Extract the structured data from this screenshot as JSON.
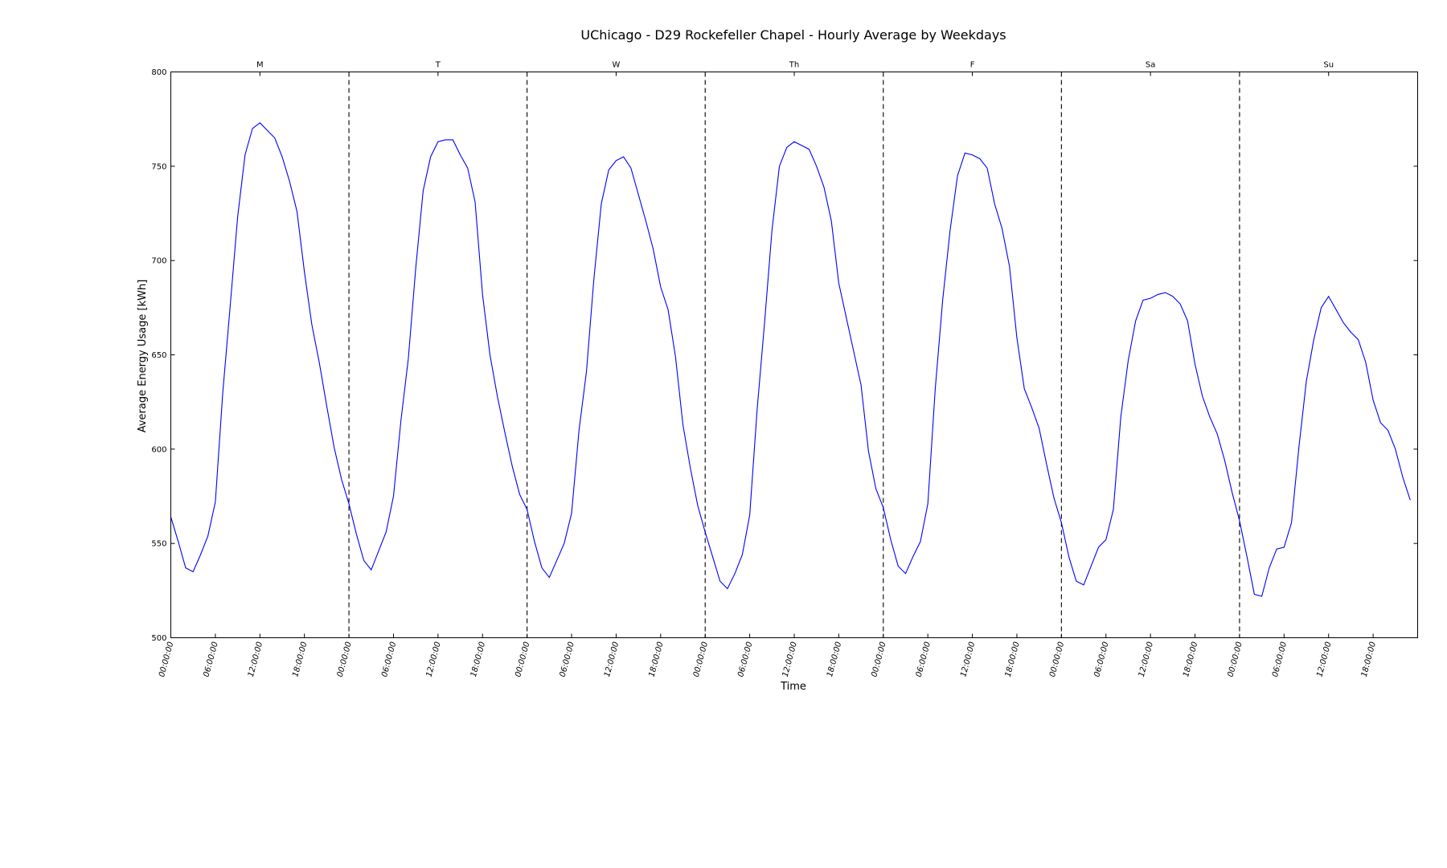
{
  "chart_data": {
    "type": "line",
    "title": "UChicago - D29 Rockefeller Chapel - Hourly Average by Weekdays",
    "xlabel": "Time",
    "ylabel": "Average Energy Usage [kWh]",
    "ylim": [
      500,
      800
    ],
    "yticks": [
      500,
      550,
      600,
      650,
      700,
      750,
      800
    ],
    "grid": false,
    "days": [
      "M",
      "T",
      "W",
      "Th",
      "F",
      "Sa",
      "Su"
    ],
    "xtick_labels": [
      "00:00:00",
      "06:00:00",
      "12:00:00",
      "18:00:00"
    ],
    "line_color": "#0000ff",
    "series": [
      {
        "hours_per_day": 24,
        "values": [
          [
            564,
            551,
            537,
            535,
            544,
            554,
            572,
            630,
            676,
            723,
            756,
            770,
            773,
            769,
            765,
            755,
            742,
            726,
            694,
            666,
            646,
            623,
            601,
            584
          ],
          [
            571,
            555,
            541,
            536,
            546,
            556,
            575,
            615,
            648,
            696,
            737,
            755,
            763,
            764,
            764,
            756,
            749,
            731,
            682,
            650,
            628,
            609,
            591,
            576
          ],
          [
            568,
            551,
            537,
            532,
            541,
            550,
            566,
            610,
            641,
            690,
            730,
            748,
            753,
            755,
            749,
            735,
            721,
            706,
            686,
            674,
            649,
            613,
            590,
            570
          ],
          [
            556,
            543,
            530,
            526,
            534,
            544,
            565,
            621,
            667,
            716,
            750,
            760,
            763,
            761,
            759,
            750,
            739,
            721,
            688,
            670,
            652,
            634,
            599,
            579
          ],
          [
            569,
            552,
            538,
            534,
            543,
            551,
            571,
            632,
            679,
            716,
            745,
            757,
            756,
            754,
            749,
            730,
            717,
            697,
            659,
            632,
            622,
            611,
            592,
            574
          ],
          [
            561,
            543,
            530,
            528,
            538,
            548,
            552,
            568,
            617,
            647,
            668,
            679,
            680,
            682,
            683,
            681,
            677,
            668,
            645,
            628,
            617,
            608,
            594,
            577
          ],
          [
            562,
            543,
            523,
            522,
            537,
            547,
            548,
            561,
            601,
            636,
            658,
            675,
            681,
            674,
            667,
            662,
            658,
            646,
            626,
            614,
            610,
            600,
            585,
            573
          ]
        ]
      }
    ]
  }
}
